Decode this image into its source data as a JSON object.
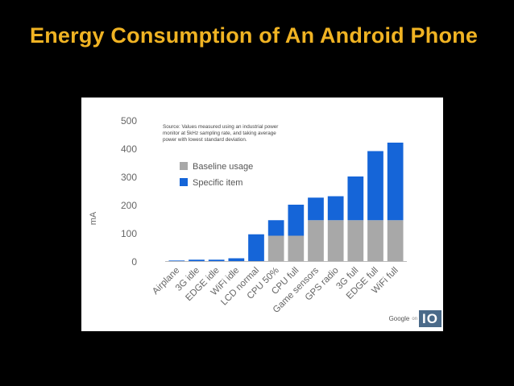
{
  "slide": {
    "title": "Energy Consumption of An Android Phone"
  },
  "colors": {
    "title": "#f0b323",
    "baseline": "#a8a8a8",
    "specific": "#1565d8",
    "axis_text": "#666666",
    "logo_box": "#4a6a89"
  },
  "logo": {
    "word": "Google",
    "sub": "on",
    "io": "IO"
  },
  "chart_data": {
    "type": "bar",
    "stacked": true,
    "title": "",
    "xlabel": "",
    "ylabel": "mA",
    "ylim": [
      0,
      500
    ],
    "yticks": [
      0,
      100,
      200,
      300,
      400,
      500
    ],
    "grid": false,
    "note": "Source: Values measured using an industrial power monitor at 5kHz sampling rate, and taking average power with lowest standard deviation.",
    "note_lines": [
      "Source: Values measured using an industrial power",
      "monitor at 5kHz sampling rate, and taking average",
      "power with lowest standard deviation."
    ],
    "legend": "top-left",
    "categories": [
      "Airplane",
      "3G idle",
      "EDGE idle",
      "WiFi idle",
      "LCD normal",
      "CPU 50%",
      "CPU full",
      "Game sensors",
      "GPS radio",
      "3G full",
      "EDGE full",
      "WiFi full"
    ],
    "series": [
      {
        "name": "Baseline usage",
        "color": "#a8a8a8",
        "values": [
          0,
          0,
          0,
          0,
          0,
          90,
          90,
          145,
          145,
          145,
          145,
          145
        ]
      },
      {
        "name": "Specific item",
        "color": "#1565d8",
        "values": [
          2,
          5,
          5,
          10,
          95,
          55,
          110,
          80,
          85,
          155,
          245,
          275
        ]
      }
    ]
  }
}
